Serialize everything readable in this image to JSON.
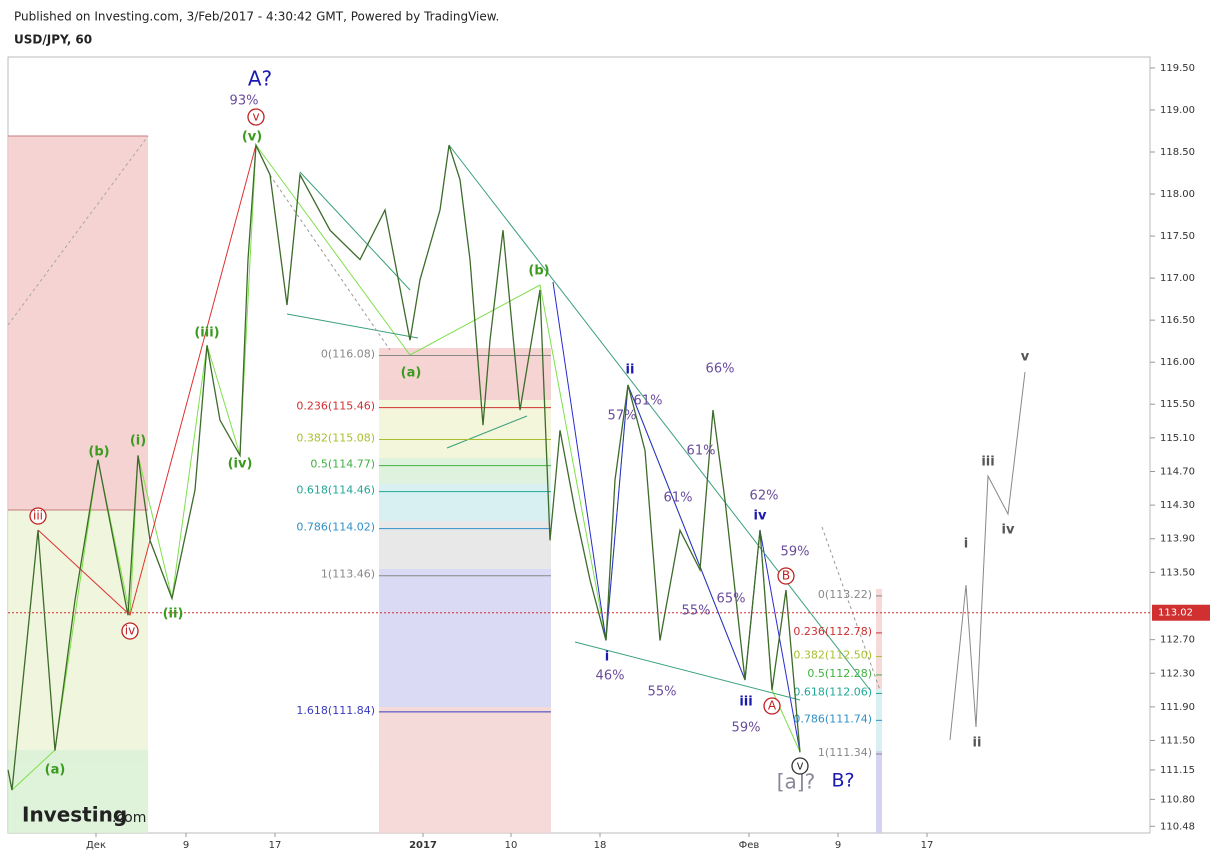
{
  "header": {
    "published": "Published on Investing.com, 3/Feb/2017 - 4:30:42 GMT, Powered by TradingView.",
    "symbol": "USD/JPY, 60",
    "logo": "Investing",
    "logo_suffix": ".com"
  },
  "chart_data": {
    "type": "line",
    "color": "#3d6b2a",
    "values": [
      111.15,
      110.91,
      114.0,
      111.38,
      113.17,
      114.84,
      112.99,
      114.89,
      113.88,
      113.19,
      114.48,
      116.2,
      115.31,
      114.89,
      117.22,
      118.58,
      118.23,
      116.68,
      118.23,
      117.57,
      117.22,
      117.81,
      116.26,
      116.98,
      117.81,
      118.58,
      118.17,
      117.22,
      115.25,
      116.26,
      117.57,
      115.43,
      116.86,
      113.88,
      115.19,
      114.24,
      113.41,
      112.69,
      114.6,
      115.73,
      114.95,
      112.69,
      114.0,
      113.53,
      115.43,
      114.36,
      112.22,
      114.0,
      112.1,
      113.29,
      111.36
    ],
    "ylim": [
      110.4,
      119.63
    ],
    "yticks": [
      {
        "value": 119.5,
        "label": "119.50"
      },
      {
        "value": 119,
        "label": "119.00"
      },
      {
        "value": 118.5,
        "label": "118.50"
      },
      {
        "value": 118,
        "label": "118.00"
      },
      {
        "value": 117.5,
        "label": "117.50"
      },
      {
        "value": 117,
        "label": "117.00"
      },
      {
        "value": 116.5,
        "label": "116.50"
      },
      {
        "value": 116,
        "label": "116.00"
      },
      {
        "value": 115.5,
        "label": "115.50"
      },
      {
        "value": 115.1,
        "label": "115.10"
      },
      {
        "value": 114.7,
        "label": "114.70"
      },
      {
        "value": 114.3,
        "label": "114.30"
      },
      {
        "value": 113.9,
        "label": "113.90"
      },
      {
        "value": 113.5,
        "label": "113.50"
      },
      {
        "value": 112.7,
        "label": "112.70"
      },
      {
        "value": 112.3,
        "label": "112.30"
      },
      {
        "value": 111.9,
        "label": "111.90"
      },
      {
        "value": 111.5,
        "label": "111.50"
      },
      {
        "value": 111.15,
        "label": "111.15"
      },
      {
        "value": 110.8,
        "label": "110.80"
      },
      {
        "value": 110.48,
        "label": "110.48"
      }
    ],
    "x_labels": [
      "Дек",
      "9",
      "17",
      "2017",
      "10",
      "18",
      "Фев",
      "9",
      "17"
    ],
    "current_price": 113.02,
    "fib_left": [
      {
        "value": 116.08,
        "label": "0(116.08)"
      },
      {
        "value": 115.46,
        "label": "0.236(115.46)"
      },
      {
        "value": 115.08,
        "label": "0.382(115.08)"
      },
      {
        "value": 114.77,
        "label": "0.5(114.77)"
      },
      {
        "value": 114.46,
        "label": "0.618(114.46)"
      },
      {
        "value": 114.02,
        "label": "0.786(114.02)"
      },
      {
        "value": 113.46,
        "label": "1(113.46)"
      },
      {
        "value": 111.84,
        "label": "1.618(111.84)"
      }
    ],
    "fib_right": [
      {
        "value": 113.22,
        "label": "0(113.22)"
      },
      {
        "value": 112.78,
        "label": "0.236(112.78)"
      },
      {
        "value": 112.5,
        "label": "0.382(112.50)"
      },
      {
        "value": 112.28,
        "label": "0.5(112.28)"
      },
      {
        "value": 112.06,
        "label": "0.618(112.06)"
      },
      {
        "value": 111.74,
        "label": "0.786(111.74)"
      },
      {
        "value": 111.34,
        "label": "1(111.34)"
      }
    ],
    "annotations": [
      "A?",
      "93%",
      "v",
      "(v)",
      "(iii)",
      "(iv)",
      "(i)",
      "(b)",
      "iii",
      "(ii)",
      "iv",
      "(a)",
      "(a)",
      "(b)",
      "ii",
      "57%",
      "61%",
      "66%",
      "61%",
      "61%",
      "62%",
      "iv",
      "59%",
      "B",
      "55%",
      "65%",
      "i",
      "46%",
      "55%",
      "iii",
      "A",
      "59%",
      "[a]?",
      "B?",
      "i",
      "ii",
      "iii",
      "iv",
      "v",
      "v"
    ]
  }
}
